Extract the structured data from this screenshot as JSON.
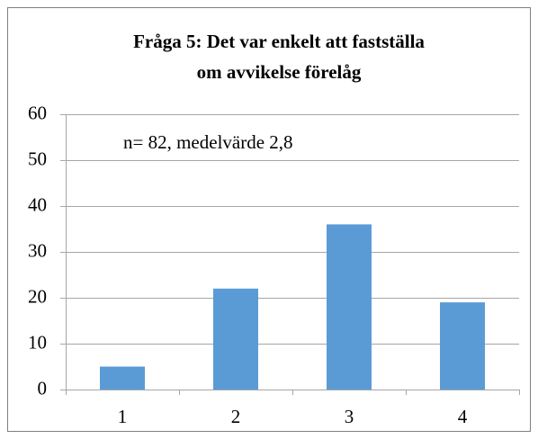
{
  "chart_data": {
    "type": "bar",
    "title": [
      "Fråga 5: Det var enkelt att fastställa",
      "om avvikelse förelåg"
    ],
    "annotation": "n= 82, medelvärde 2,8",
    "categories": [
      "1",
      "2",
      "3",
      "4"
    ],
    "values": [
      5,
      22,
      36,
      19
    ],
    "color": "#5b9bd5",
    "ylim": [
      0,
      60
    ],
    "yticks": [
      0,
      10,
      20,
      30,
      40,
      50,
      60
    ],
    "grid": true
  }
}
